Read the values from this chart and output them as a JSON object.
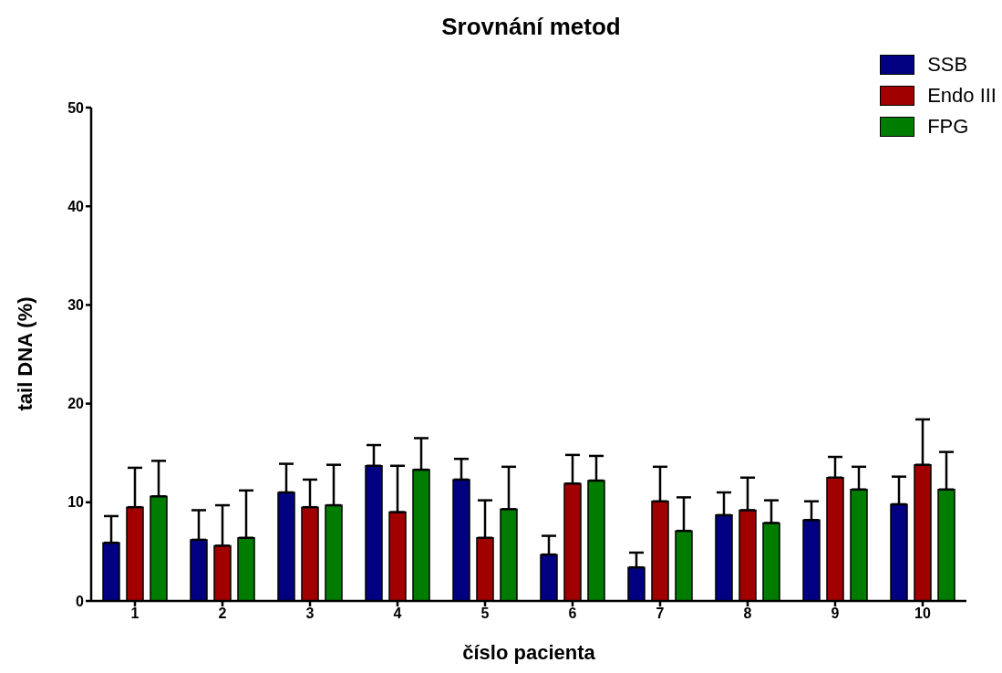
{
  "chart_data": {
    "type": "bar",
    "title": "Srovnání metod",
    "xlabel": "číslo pacienta",
    "ylabel": "tail DNA (%)",
    "categories": [
      "1",
      "2",
      "3",
      "4",
      "5",
      "6",
      "7",
      "8",
      "9",
      "10"
    ],
    "series": [
      {
        "name": "SSB",
        "color": "#000080",
        "values": [
          5.9,
          6.2,
          11.0,
          13.7,
          12.3,
          4.7,
          3.4,
          8.7,
          8.2,
          9.8
        ],
        "errors": [
          [
            5.9,
            8.6
          ],
          [
            6.2,
            9.2
          ],
          [
            11.0,
            13.9
          ],
          [
            13.7,
            15.8
          ],
          [
            12.3,
            14.4
          ],
          [
            4.7,
            6.6
          ],
          [
            3.4,
            4.9
          ],
          [
            8.7,
            11.0
          ],
          [
            8.2,
            10.1
          ],
          [
            9.8,
            12.6
          ]
        ]
      },
      {
        "name": "Endo III",
        "color": "#a00000",
        "values": [
          9.5,
          5.6,
          9.5,
          9.0,
          6.4,
          11.9,
          10.1,
          9.2,
          12.5,
          13.8
        ],
        "errors": [
          [
            9.5,
            13.5
          ],
          [
            5.6,
            9.7
          ],
          [
            9.5,
            12.3
          ],
          [
            9.0,
            13.7
          ],
          [
            6.4,
            10.2
          ],
          [
            11.9,
            14.8
          ],
          [
            10.1,
            13.6
          ],
          [
            9.2,
            12.5
          ],
          [
            12.5,
            14.6
          ],
          [
            13.8,
            18.4
          ]
        ]
      },
      {
        "name": "FPG",
        "color": "#007d00",
        "values": [
          10.6,
          6.4,
          9.7,
          13.3,
          9.3,
          12.2,
          7.1,
          7.9,
          11.3,
          11.3
        ],
        "errors": [
          [
            10.6,
            14.2
          ],
          [
            6.4,
            11.2
          ],
          [
            9.7,
            13.8
          ],
          [
            13.3,
            16.5
          ],
          [
            9.3,
            13.6
          ],
          [
            12.2,
            14.7
          ],
          [
            7.1,
            10.5
          ],
          [
            7.9,
            10.2
          ],
          [
            11.3,
            13.6
          ],
          [
            11.3,
            15.1
          ]
        ]
      }
    ],
    "ylim": [
      0,
      50
    ],
    "yticks": [
      0,
      10,
      20,
      30,
      40,
      50
    ],
    "grid": false,
    "legend": "top right"
  }
}
